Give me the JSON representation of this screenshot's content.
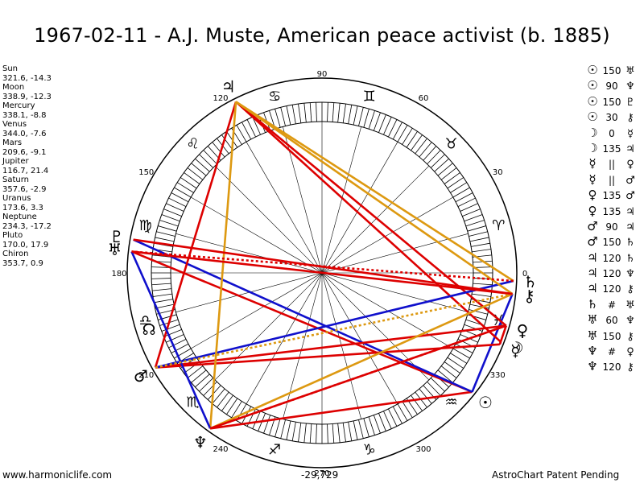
{
  "title": "1967-02-11 - A.J. Muste, American peace activist (b. 1885)",
  "planets": [
    {
      "name": "Sun",
      "coords": "321.6, -14.3",
      "glyph": "☉",
      "lon": 321.6
    },
    {
      "name": "Moon",
      "coords": "338.9, -12.3",
      "glyph": "☽",
      "lon": 338.9
    },
    {
      "name": "Mercury",
      "coords": "338.1, -8.8",
      "glyph": "☿",
      "lon": 338.1
    },
    {
      "name": "Venus",
      "coords": "344.0, -7.6",
      "glyph": "♀",
      "lon": 344.0
    },
    {
      "name": "Mars",
      "coords": "209.6, -9.1",
      "glyph": "♂",
      "lon": 209.6
    },
    {
      "name": "Jupiter",
      "coords": "116.7, 21.4",
      "glyph": "♃",
      "lon": 116.7
    },
    {
      "name": "Saturn",
      "coords": "357.6, -2.9",
      "glyph": "♄",
      "lon": 357.6
    },
    {
      "name": "Uranus",
      "coords": "173.6, 3.3",
      "glyph": "♅",
      "lon": 173.6
    },
    {
      "name": "Neptune",
      "coords": "234.3, -17.2",
      "glyph": "♆",
      "lon": 234.3
    },
    {
      "name": "Pluto",
      "coords": "170.0, 17.9",
      "glyph": "♇",
      "lon": 170.0
    },
    {
      "name": "Chiron",
      "coords": "353.7, 0.9",
      "glyph": "⚷",
      "lon": 353.7
    }
  ],
  "node": {
    "glyph": "☊",
    "lon": 198
  },
  "aspects": [
    {
      "a": "☉",
      "type": "150",
      "b": "♅",
      "p1": "Sun",
      "p2": "Uranus",
      "color": "#dd0000",
      "style": "solid"
    },
    {
      "a": "☉",
      "type": "90",
      "b": "♆",
      "p1": "Sun",
      "p2": "Neptune",
      "color": "#dd0000",
      "style": "solid"
    },
    {
      "a": "☉",
      "type": "150",
      "b": "♇",
      "p1": "Sun",
      "p2": "Pluto",
      "color": "#1010cc",
      "style": "solid"
    },
    {
      "a": "☉",
      "type": "30",
      "b": "⚷",
      "p1": "Sun",
      "p2": "Chiron",
      "color": "#1010cc",
      "style": "solid"
    },
    {
      "a": "☽",
      "type": "0",
      "b": "☿",
      "p1": "Moon",
      "p2": "Mercury",
      "color": "#1010cc",
      "style": "solid"
    },
    {
      "a": "☽",
      "type": "135",
      "b": "♃",
      "p1": "Moon",
      "p2": "Jupiter",
      "color": "#dd0000",
      "style": "solid"
    },
    {
      "a": "☿",
      "type": "||",
      "b": "♀",
      "p1": "Mercury",
      "p2": "Venus",
      "color": "#dd0000",
      "style": "solid"
    },
    {
      "a": "☿",
      "type": "||",
      "b": "♂",
      "p1": "Mercury",
      "p2": "Mars",
      "color": "#dd0000",
      "style": "solid"
    },
    {
      "a": "♀",
      "type": "135",
      "b": "♂",
      "p1": "Venus",
      "p2": "Mars",
      "color": "#dd0000",
      "style": "solid"
    },
    {
      "a": "♀",
      "type": "135",
      "b": "♃",
      "p1": "Venus",
      "p2": "Jupiter",
      "color": "#dd0000",
      "style": "solid"
    },
    {
      "a": "♂",
      "type": "90",
      "b": "♃",
      "p1": "Mars",
      "p2": "Jupiter",
      "color": "#dd0000",
      "style": "solid"
    },
    {
      "a": "♂",
      "type": "150",
      "b": "♄",
      "p1": "Mars",
      "p2": "Saturn",
      "color": "#1010cc",
      "style": "solid"
    },
    {
      "a": "♃",
      "type": "120",
      "b": "♄",
      "p1": "Jupiter",
      "p2": "Saturn",
      "color": "#dd9911",
      "style": "solid"
    },
    {
      "a": "♃",
      "type": "120",
      "b": "♆",
      "p1": "Jupiter",
      "p2": "Neptune",
      "color": "#dd9911",
      "style": "solid"
    },
    {
      "a": "♃",
      "type": "120",
      "b": "⚷",
      "p1": "Jupiter",
      "p2": "Chiron",
      "color": "#dd9911",
      "style": "solid"
    },
    {
      "a": "♄",
      "type": "#",
      "b": "♅",
      "p1": "Saturn",
      "p2": "Uranus",
      "color": "#dd0000",
      "style": "dotted"
    },
    {
      "a": "♅",
      "type": "60",
      "b": "♆",
      "p1": "Uranus",
      "p2": "Neptune",
      "color": "#1010cc",
      "style": "solid"
    },
    {
      "a": "♅",
      "type": "150",
      "b": "⚷",
      "p1": "Uranus",
      "p2": "Chiron",
      "color": "#dd0000",
      "style": "solid"
    },
    {
      "a": "♆",
      "type": "#",
      "b": "♀",
      "p1": "Neptune",
      "p2": "Venus",
      "color": "#dd0000",
      "style": "dotted"
    },
    {
      "a": "♆",
      "type": "120",
      "b": "⚷",
      "p1": "Neptune",
      "p2": "Chiron",
      "color": "#dd9911",
      "style": "solid"
    }
  ],
  "extra_lines": [
    {
      "p1": "Mars",
      "p2": "Chiron",
      "color": "#dd9911",
      "style": "dotted"
    },
    {
      "p1": "Neptune",
      "p2": "Venus",
      "color": "#dd0000",
      "style": "solid"
    },
    {
      "p1": "Pluto",
      "p2": "Chiron",
      "color": "#dd0000",
      "style": "solid"
    }
  ],
  "degree_labels": [
    {
      "deg": 0,
      "text": "0"
    },
    {
      "deg": 30,
      "text": "30"
    },
    {
      "deg": 60,
      "text": "60"
    },
    {
      "deg": 90,
      "text": "90"
    },
    {
      "deg": 120,
      "text": "120"
    },
    {
      "deg": 150,
      "text": "150"
    },
    {
      "deg": 180,
      "text": "180"
    },
    {
      "deg": 210,
      "text": "210"
    },
    {
      "deg": 240,
      "text": "240"
    },
    {
      "deg": 270,
      "text": "270"
    },
    {
      "deg": 300,
      "text": "300"
    },
    {
      "deg": 330,
      "text": "330"
    }
  ],
  "zodiac": [
    "♈",
    "♉",
    "♊",
    "♋",
    "♌",
    "♍",
    "♎",
    "♏",
    "♐",
    "♑",
    "♒",
    "♓"
  ],
  "footer_left": "www.harmoniclife.com",
  "footer_center": "-29,729",
  "footer_right": "AstroChart Patent Pending"
}
